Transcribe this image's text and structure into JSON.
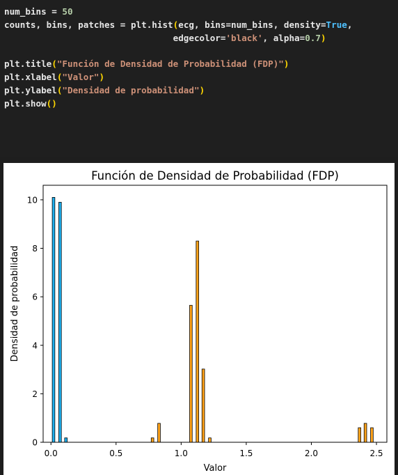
{
  "code_cell": {
    "lines": [
      [
        {
          "t": "num_bins = ",
          "c": "txt"
        },
        {
          "t": "50",
          "c": "num"
        }
      ],
      [
        {
          "t": "counts, bins, patches = plt.hist",
          "c": "txt"
        },
        {
          "t": "(",
          "c": "br"
        },
        {
          "t": "ecg, bins=num_bins, density=",
          "c": "txt"
        },
        {
          "t": "True",
          "c": "kw"
        },
        {
          "t": ",",
          "c": "txt"
        }
      ],
      [
        {
          "t": "                                edgecolor=",
          "c": "txt"
        },
        {
          "t": "'black'",
          "c": "str"
        },
        {
          "t": ", alpha=",
          "c": "txt"
        },
        {
          "t": "0.7",
          "c": "num"
        },
        {
          "t": ")",
          "c": "br"
        }
      ],
      [],
      [
        {
          "t": "plt.title",
          "c": "txt"
        },
        {
          "t": "(",
          "c": "br"
        },
        {
          "t": "\"Función de Densidad de Probabilidad (FDP)\"",
          "c": "str"
        },
        {
          "t": ")",
          "c": "br"
        }
      ],
      [
        {
          "t": "plt.xlabel",
          "c": "txt"
        },
        {
          "t": "(",
          "c": "br"
        },
        {
          "t": "\"Valor\"",
          "c": "str"
        },
        {
          "t": ")",
          "c": "br"
        }
      ],
      [
        {
          "t": "plt.ylabel",
          "c": "txt"
        },
        {
          "t": "(",
          "c": "br"
        },
        {
          "t": "\"Densidad de probabilidad\"",
          "c": "str"
        },
        {
          "t": ")",
          "c": "br"
        }
      ],
      [
        {
          "t": "plt.show",
          "c": "txt"
        },
        {
          "t": "()",
          "c": "br"
        }
      ]
    ]
  },
  "chart_data": {
    "type": "bar",
    "title": "Función de Densidad de Probabilidad (FDP)",
    "xlabel": "Valor",
    "ylabel": "Densidad de probabilidad",
    "xlim": [
      -0.06,
      2.58
    ],
    "ylim": [
      0,
      10.6
    ],
    "xticks": [
      "0.0",
      "0.5",
      "1.0",
      "1.5",
      "2.0",
      "2.5"
    ],
    "xtick_values": [
      0.0,
      0.5,
      1.0,
      1.5,
      2.0,
      2.5
    ],
    "yticks": [
      "0",
      "2",
      "4",
      "6",
      "8",
      "10"
    ],
    "ytick_values": [
      0,
      2,
      4,
      6,
      8,
      10
    ],
    "grid": false,
    "bar_width": 0.02,
    "edgecolor": "#000000",
    "series": [
      {
        "color": "#1fb1f0",
        "bars": [
          {
            "x": 0.02,
            "value": 10.1
          },
          {
            "x": 0.07,
            "value": 9.9
          },
          {
            "x": 0.115,
            "value": 0.18
          }
        ]
      },
      {
        "color": "#ffa31a",
        "bars": [
          {
            "x": 0.78,
            "value": 0.18
          },
          {
            "x": 0.83,
            "value": 0.78
          },
          {
            "x": 1.075,
            "value": 5.65
          },
          {
            "x": 1.125,
            "value": 8.3
          },
          {
            "x": 1.17,
            "value": 3.02
          },
          {
            "x": 1.22,
            "value": 0.18
          },
          {
            "x": 2.37,
            "value": 0.6
          },
          {
            "x": 2.415,
            "value": 0.78
          },
          {
            "x": 2.465,
            "value": 0.6
          }
        ]
      }
    ]
  }
}
